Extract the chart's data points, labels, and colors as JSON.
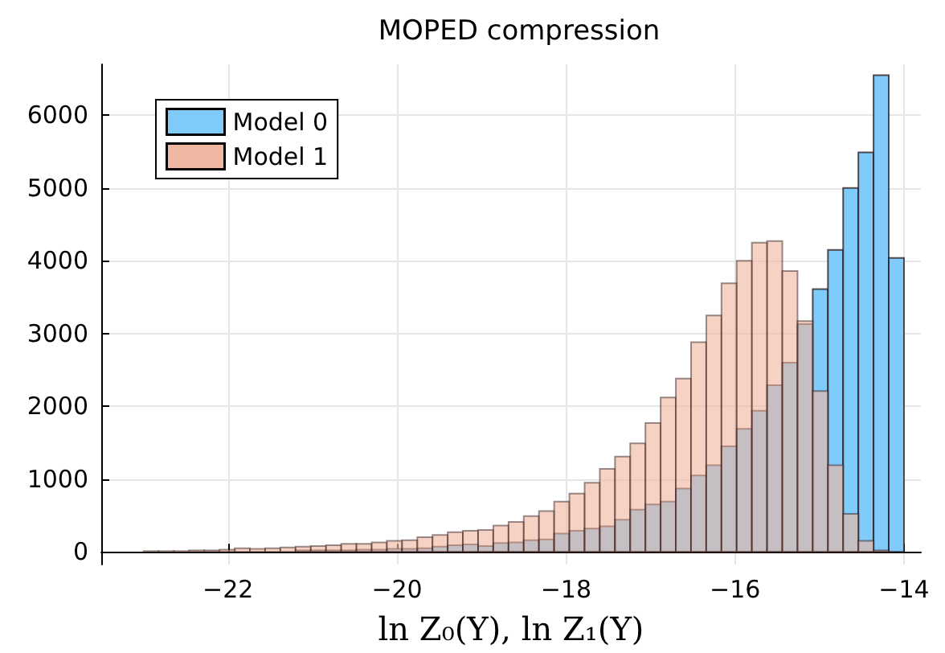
{
  "chart_data": {
    "type": "histogram",
    "title": "MOPED compression",
    "xlabel": "ln Z₀(Y), ln Z₁(Y)",
    "bins": [
      -23,
      -22.82,
      -22.64,
      -22.46,
      -22.28,
      -22.1,
      -21.92,
      -21.74,
      -21.56,
      -21.38,
      -21.2,
      -21.02,
      -20.84,
      -20.66,
      -20.48,
      -20.3,
      -20.12,
      -19.94,
      -19.76,
      -19.58,
      -19.4,
      -19.22,
      -19.04,
      -18.86,
      -18.68,
      -18.5,
      -18.32,
      -18.14,
      -17.96,
      -17.78,
      -17.6,
      -17.42,
      -17.24,
      -17.06,
      -16.88,
      -16.7,
      -16.52,
      -16.34,
      -16.16,
      -15.98,
      -15.8,
      -15.62,
      -15.44,
      -15.26,
      -15.08,
      -14.9,
      -14.72,
      -14.54,
      -14.36,
      -14.18,
      -14
    ],
    "series": [
      {
        "name": "Model 0",
        "color": "#7fccfb",
        "values": [
          0,
          0,
          0,
          0,
          0,
          0,
          null,
          null,
          null,
          null,
          20,
          20,
          20,
          20,
          30,
          30,
          40,
          40,
          50,
          70,
          90,
          100,
          80,
          120,
          130,
          160,
          170,
          250,
          290,
          320,
          350,
          440,
          580,
          650,
          690,
          870,
          1050,
          1190,
          1450,
          1690,
          1940,
          2290,
          2600,
          3130,
          3610,
          4150,
          5000,
          5490,
          6550,
          4040
        ]
      },
      {
        "name": "Model 1",
        "color": "#f0b7a2",
        "values": [
          10,
          10,
          10,
          20,
          20,
          30,
          50,
          40,
          50,
          60,
          70,
          80,
          90,
          110,
          110,
          130,
          150,
          160,
          200,
          230,
          270,
          290,
          300,
          360,
          410,
          490,
          560,
          690,
          800,
          950,
          1140,
          1310,
          1490,
          1770,
          2120,
          2380,
          2880,
          3250,
          3690,
          4000,
          4250,
          4270,
          3860,
          3170,
          2210,
          1190,
          520,
          150,
          20,
          0
        ]
      }
    ],
    "xlim": [
      -23.5,
      -13.8
    ],
    "xticks": [
      {
        "value": -22,
        "label": "−22"
      },
      {
        "value": -20,
        "label": "−20"
      },
      {
        "value": -18,
        "label": "−18"
      },
      {
        "value": -16,
        "label": "−16"
      },
      {
        "value": -14,
        "label": "−14"
      }
    ],
    "ylim": [
      -175,
      6700
    ],
    "yticks": [
      0,
      1000,
      2000,
      3000,
      4000,
      5000,
      6000
    ],
    "grid": true,
    "legend": "top left"
  }
}
